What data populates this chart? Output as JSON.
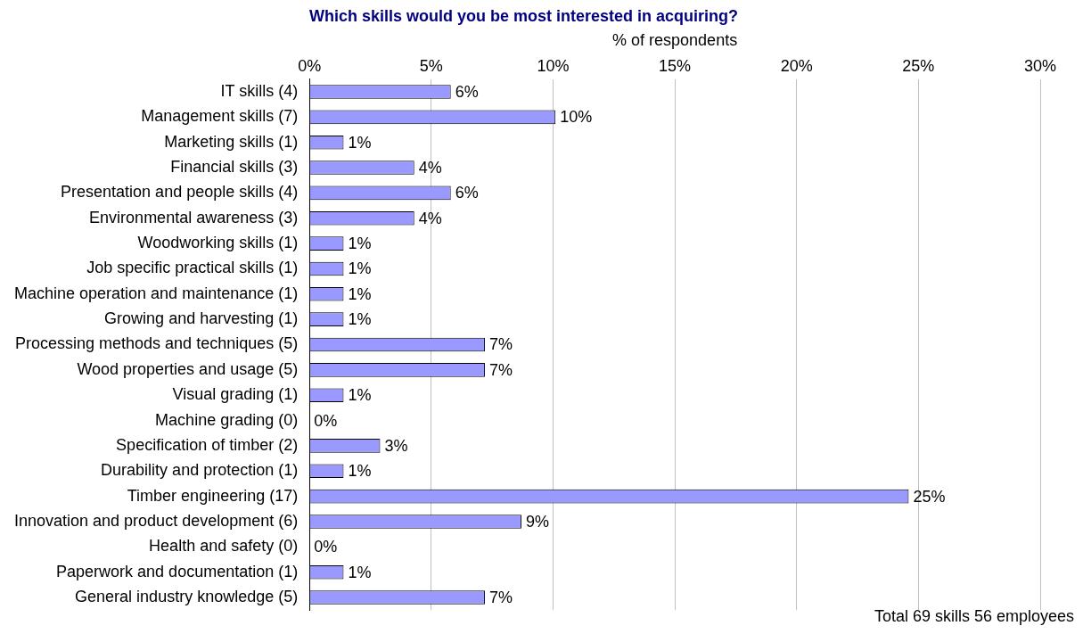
{
  "chart_data": {
    "type": "bar",
    "orientation": "horizontal",
    "title": "Which skills would you be most interested in acquiring?",
    "xlabel": "% of respondents",
    "categories": [
      "IT skills (4)",
      "Management skills (7)",
      "Marketing skills (1)",
      "Financial skills (3)",
      "Presentation and people skills (4)",
      "Environmental awareness (3)",
      "Woodworking skills (1)",
      "Job specific practical skills (1)",
      "Machine operation and maintenance (1)",
      "Growing and harvesting (1)",
      "Processing methods and techniques (5)",
      "Wood properties and usage (5)",
      "Visual grading (1)",
      "Machine grading (0)",
      "Specification of timber (2)",
      "Durability and protection (1)",
      "Timber engineering (17)",
      "Innovation and product development (6)",
      "Health and safety (0)",
      "Paperwork and documentation (1)",
      "General industry knowledge (5)"
    ],
    "values": [
      5.8,
      10.1,
      1.4,
      4.3,
      5.8,
      4.3,
      1.4,
      1.4,
      1.4,
      1.4,
      7.2,
      7.2,
      1.4,
      0,
      2.9,
      1.4,
      24.6,
      8.7,
      0,
      1.4,
      7.2
    ],
    "value_labels": [
      "6%",
      "10%",
      "1%",
      "4%",
      "6%",
      "4%",
      "1%",
      "1%",
      "1%",
      "1%",
      "7%",
      "7%",
      "1%",
      "0%",
      "3%",
      "1%",
      "25%",
      "9%",
      "0%",
      "1%",
      "7%"
    ],
    "color": "#9999ff",
    "xlim": [
      0,
      30
    ],
    "xticks": [
      {
        "value": 0,
        "label": "0%"
      },
      {
        "value": 5,
        "label": "5%"
      },
      {
        "value": 10,
        "label": "10%"
      },
      {
        "value": 15,
        "label": "15%"
      },
      {
        "value": 20,
        "label": "20%"
      },
      {
        "value": 25,
        "label": "25%"
      },
      {
        "value": 30,
        "label": "30%"
      }
    ],
    "grid": "x",
    "legend": false,
    "annotations": [
      "Total 69 skills 56 employees"
    ]
  }
}
